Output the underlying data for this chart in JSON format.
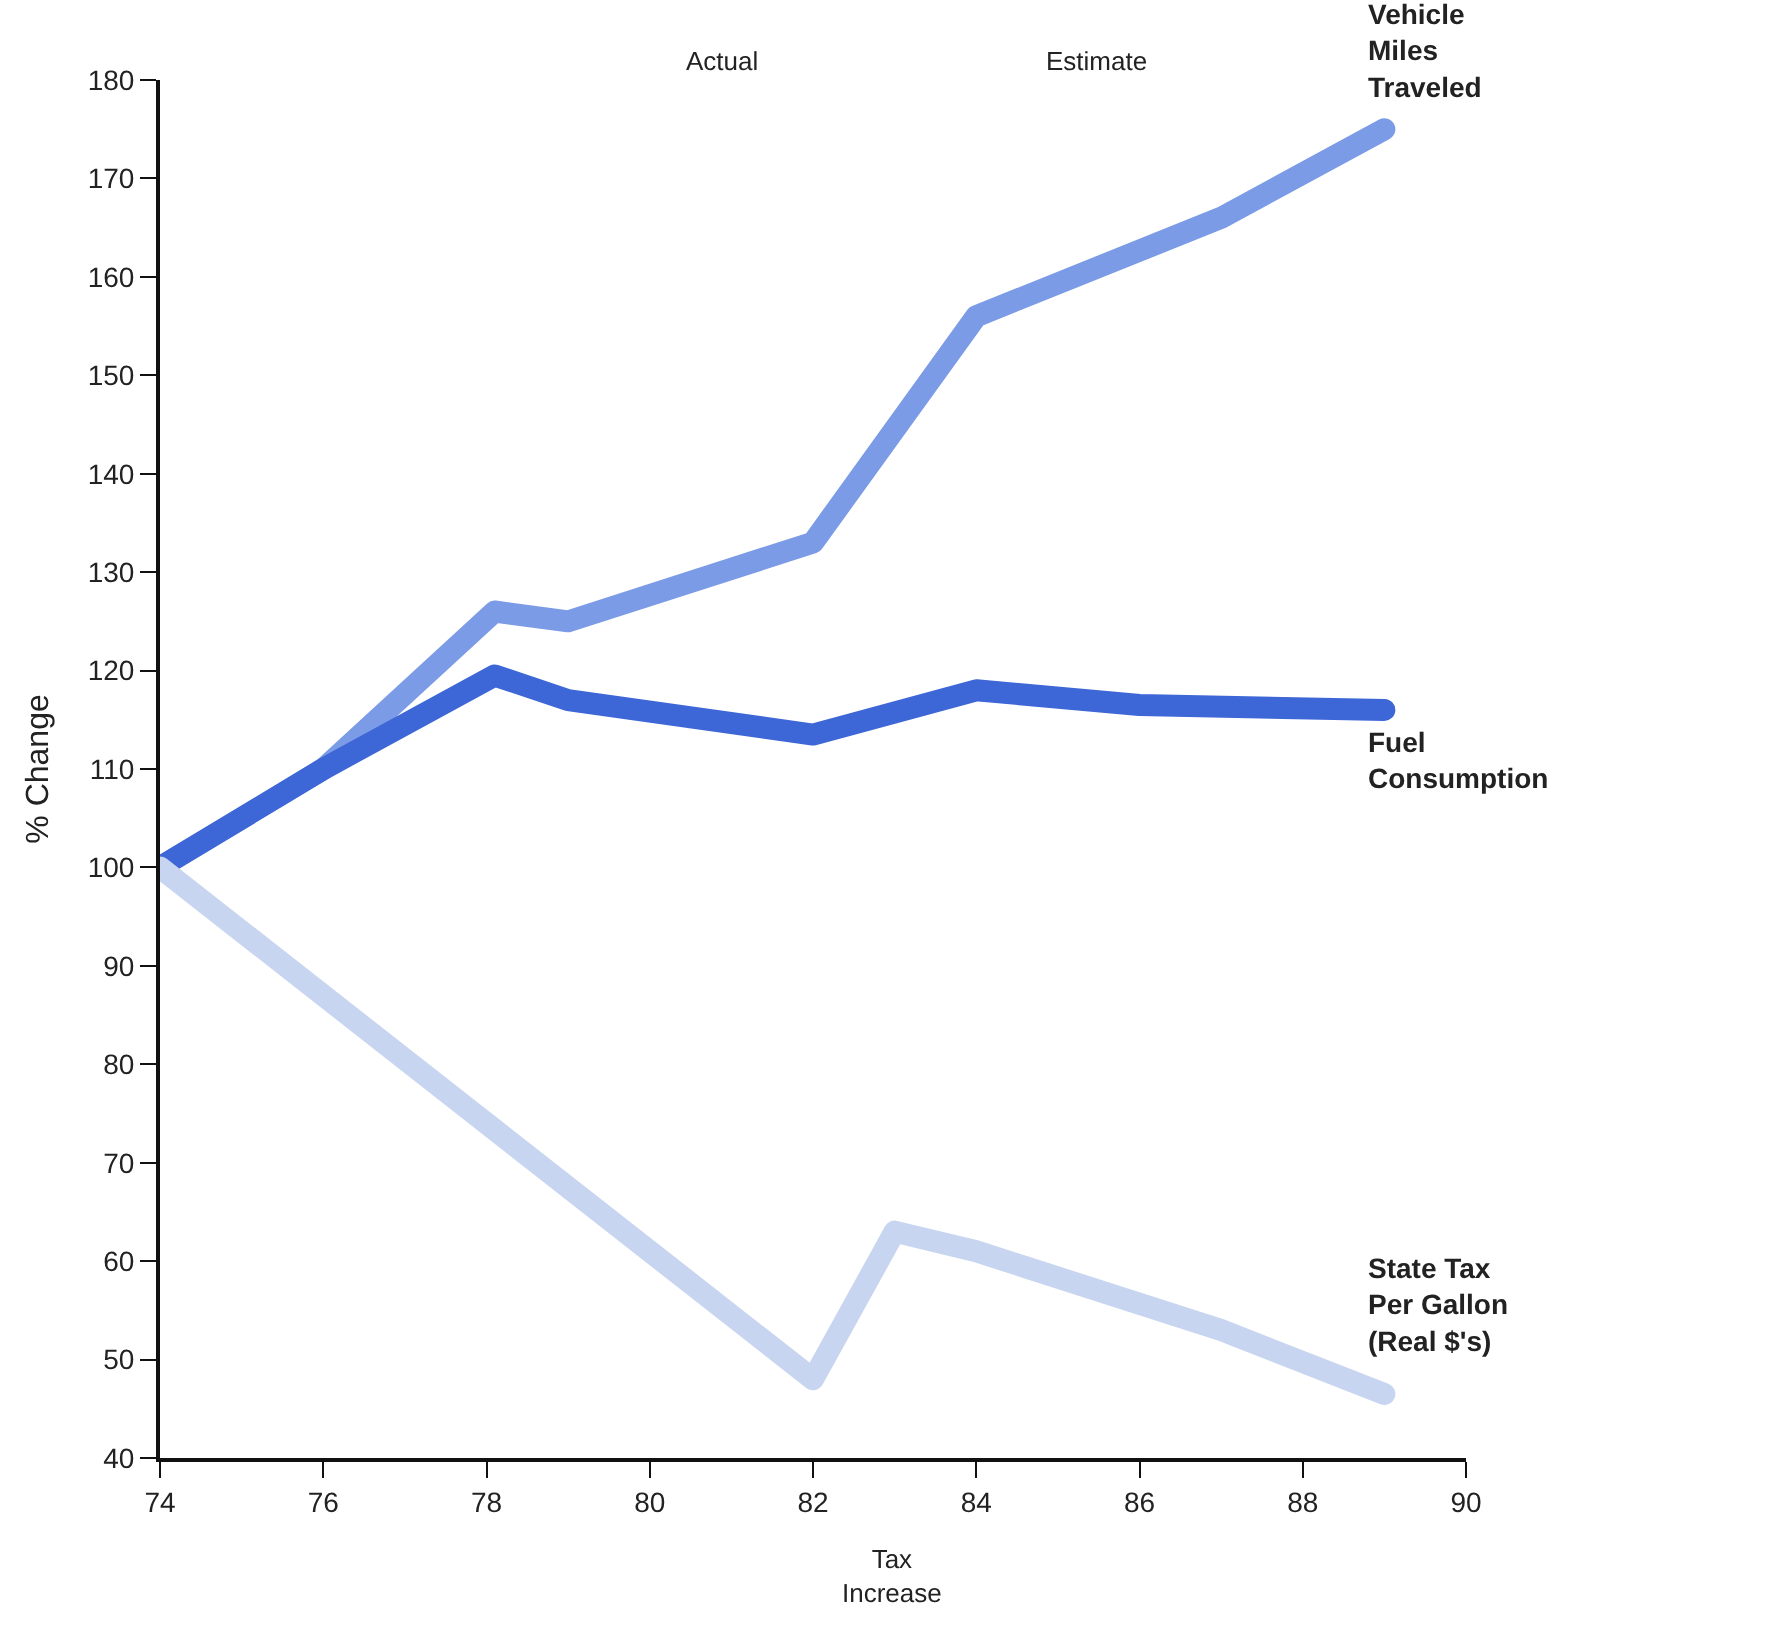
{
  "chart_data": {
    "type": "line",
    "ylabel": "% Change",
    "xlim": [
      74,
      90
    ],
    "xticks": [
      74,
      76,
      78,
      80,
      82,
      84,
      86,
      88,
      90
    ],
    "ylim": [
      40,
      180
    ],
    "yticks": [
      40,
      50,
      60,
      70,
      80,
      90,
      100,
      110,
      120,
      130,
      140,
      150,
      160,
      170,
      180
    ],
    "legend": false,
    "line_style": "solid",
    "series": [
      {
        "name": "Vehicle\nMiles\nTraveled",
        "color": "#7b9be6",
        "x": [
          74,
          76,
          78.1,
          79,
          82,
          84,
          87,
          89
        ],
        "values": [
          100,
          110,
          126,
          125,
          133,
          156,
          166,
          175
        ]
      },
      {
        "name": "Fuel\nConsumption",
        "color": "#3d66d6",
        "x": [
          74,
          76,
          78.1,
          79,
          82,
          84,
          86,
          89
        ],
        "values": [
          100,
          110,
          119.5,
          117,
          113.5,
          118,
          116.5,
          116
        ]
      },
      {
        "name": "State Tax\nPer Gallon\n(Real $'s)",
        "color": "#c8d5f0",
        "x": [
          74,
          82,
          83,
          84,
          87,
          89
        ],
        "values": [
          100,
          48,
          63,
          61,
          53,
          46.5
        ]
      }
    ],
    "annotations": [
      {
        "text": "Actual"
      },
      {
        "text": "Estimate"
      },
      "Tax\nIncrease"
    ]
  }
}
